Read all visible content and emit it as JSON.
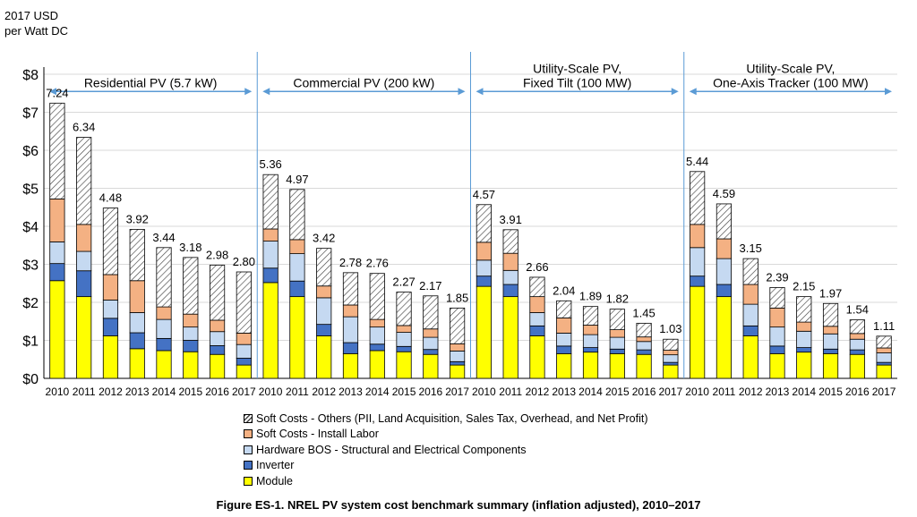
{
  "caption": "Figure ES-1. NREL PV system cost benchmark summary (inflation adjusted), 2010–2017",
  "chart_data": {
    "type": "bar",
    "stacked": true,
    "ylabel_line1": "2017 USD",
    "ylabel_line2": "per Watt DC",
    "ylim": [
      0,
      8
    ],
    "yticks": [
      "$0",
      "$1",
      "$2",
      "$3",
      "$4",
      "$5",
      "$6",
      "$7",
      "$8"
    ],
    "years": [
      "2010",
      "2011",
      "2012",
      "2013",
      "2014",
      "2015",
      "2016",
      "2017"
    ],
    "legend_placement": "bottom-center",
    "segment_colors": {
      "module": "#ffff00",
      "inverter": "#4472c4",
      "hardware_bos": "#c5d9f1",
      "install_labor": "#f4b183",
      "soft_others": "hatched"
    },
    "legend": [
      {
        "key": "soft_others",
        "label": "Soft Costs - Others (PII, Land Acquisition, Sales Tax, Overhead, and Net Profit)"
      },
      {
        "key": "install_labor",
        "label": "Soft Costs - Install Labor"
      },
      {
        "key": "hardware_bos",
        "label": "Hardware BOS - Structural and Electrical Components"
      },
      {
        "key": "inverter",
        "label": "Inverter"
      },
      {
        "key": "module",
        "label": "Module"
      }
    ],
    "groups": [
      {
        "title_lines": [
          "Residential PV (5.7 kW)"
        ],
        "totals": [
          "7.24",
          "6.34",
          "4.48",
          "3.92",
          "3.44",
          "3.18",
          "2.98",
          "2.80"
        ],
        "module": [
          2.57,
          2.15,
          1.12,
          0.78,
          0.73,
          0.7,
          0.63,
          0.35
        ],
        "inverter": [
          0.45,
          0.68,
          0.46,
          0.42,
          0.32,
          0.3,
          0.23,
          0.18
        ],
        "hardware_bos": [
          0.57,
          0.51,
          0.48,
          0.53,
          0.5,
          0.35,
          0.37,
          0.36
        ],
        "install_labor": [
          1.13,
          0.71,
          0.67,
          0.84,
          0.33,
          0.34,
          0.3,
          0.3
        ],
        "soft_others": [
          2.52,
          2.29,
          1.75,
          1.35,
          1.56,
          1.49,
          1.45,
          1.61
        ]
      },
      {
        "title_lines": [
          "Commercial PV (200 kW)"
        ],
        "totals": [
          "5.36",
          "4.97",
          "3.42",
          "2.78",
          "2.76",
          "2.27",
          "2.17",
          "1.85"
        ],
        "module": [
          2.52,
          2.15,
          1.12,
          0.65,
          0.73,
          0.7,
          0.63,
          0.35
        ],
        "inverter": [
          0.38,
          0.41,
          0.3,
          0.29,
          0.17,
          0.14,
          0.13,
          0.09
        ],
        "hardware_bos": [
          0.71,
          0.72,
          0.7,
          0.68,
          0.45,
          0.37,
          0.32,
          0.28
        ],
        "install_labor": [
          0.32,
          0.37,
          0.31,
          0.31,
          0.2,
          0.18,
          0.22,
          0.19
        ],
        "soft_others": [
          1.43,
          1.32,
          0.99,
          0.85,
          1.21,
          0.88,
          0.87,
          0.94
        ]
      },
      {
        "title_lines": [
          "Utility-Scale PV,",
          "Fixed Tilt (100 MW)"
        ],
        "totals": [
          "4.57",
          "3.91",
          "2.66",
          "2.04",
          "1.89",
          "1.82",
          "1.45",
          "1.03"
        ],
        "module": [
          2.42,
          2.15,
          1.12,
          0.65,
          0.69,
          0.65,
          0.63,
          0.35
        ],
        "inverter": [
          0.27,
          0.32,
          0.26,
          0.2,
          0.12,
          0.12,
          0.12,
          0.07
        ],
        "hardware_bos": [
          0.42,
          0.37,
          0.35,
          0.34,
          0.34,
          0.31,
          0.22,
          0.2
        ],
        "install_labor": [
          0.47,
          0.45,
          0.42,
          0.4,
          0.25,
          0.2,
          0.12,
          0.12
        ],
        "soft_others": [
          0.99,
          0.62,
          0.51,
          0.45,
          0.49,
          0.54,
          0.36,
          0.29
        ]
      },
      {
        "title_lines": [
          "Utility-Scale PV,",
          "One-Axis Tracker (100 MW)"
        ],
        "totals": [
          "5.44",
          "4.59",
          "3.15",
          "2.39",
          "2.15",
          "1.97",
          "1.54",
          "1.11"
        ],
        "module": [
          2.42,
          2.15,
          1.12,
          0.65,
          0.69,
          0.65,
          0.63,
          0.35
        ],
        "inverter": [
          0.27,
          0.32,
          0.26,
          0.2,
          0.12,
          0.12,
          0.12,
          0.07
        ],
        "hardware_bos": [
          0.75,
          0.68,
          0.57,
          0.5,
          0.43,
          0.4,
          0.28,
          0.25
        ],
        "install_labor": [
          0.61,
          0.52,
          0.52,
          0.5,
          0.24,
          0.2,
          0.15,
          0.13
        ],
        "soft_others": [
          1.39,
          0.92,
          0.68,
          0.54,
          0.67,
          0.6,
          0.36,
          0.31
        ]
      }
    ]
  }
}
